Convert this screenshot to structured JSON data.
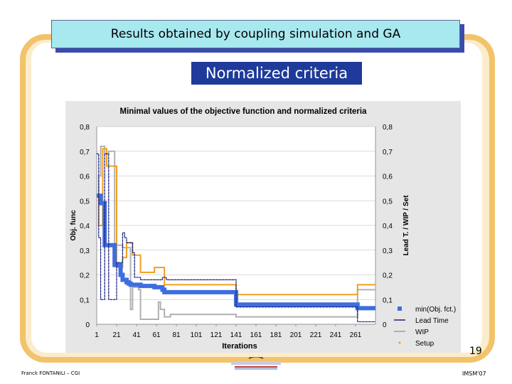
{
  "slide": {
    "title": "Results obtained by coupling simulation and GA",
    "subtitle": "Normalized criteria",
    "page_number": "19",
    "author": "Franck FONTANILI – CGI",
    "conference": "IMSM'07"
  },
  "colors": {
    "frame": "#f2c36b",
    "title_bg": "#a8e8ef",
    "subtitle_bg": "#1e3a9a",
    "obj_fct": "#3d6ee0",
    "lead_time": "#1a237e",
    "wip": "#b0b0b0",
    "setup": "#f0a020"
  },
  "chart_data": {
    "type": "line",
    "title": "Minimal values of the objective function and normalized criteria",
    "xlabel": "Iterations",
    "ylabel_left": "Obj. func",
    "ylabel_right": "Lead T. / WIP / Set",
    "xlim": [
      1,
      281
    ],
    "ylim": [
      0,
      0.8
    ],
    "x_ticks": [
      "1",
      "21",
      "41",
      "61",
      "81",
      "101",
      "121",
      "141",
      "161",
      "181",
      "201",
      "221",
      "241",
      "261"
    ],
    "y_ticks": [
      "0",
      "0,1",
      "0,2",
      "0,3",
      "0,4",
      "0,5",
      "0,6",
      "0,7",
      "0,8"
    ],
    "y_tick_values": [
      0,
      0.1,
      0.2,
      0.3,
      0.4,
      0.5,
      0.6,
      0.7,
      0.8
    ],
    "legend_position": "bottom-right",
    "series": [
      {
        "name": "min(Obj. fct.)",
        "style": "step",
        "x": [
          1,
          5,
          9,
          19,
          25,
          27,
          31,
          33,
          35,
          37,
          45,
          59,
          67,
          69,
          141,
          263,
          281
        ],
        "y": [
          0.52,
          0.49,
          0.32,
          0.24,
          0.2,
          0.18,
          0.17,
          0.165,
          0.16,
          0.16,
          0.155,
          0.15,
          0.14,
          0.13,
          0.08,
          0.065,
          0.065
        ]
      },
      {
        "name": "Lead Time",
        "style": "step",
        "x": [
          1,
          3,
          5,
          9,
          13,
          21,
          27,
          29,
          31,
          37,
          39,
          45,
          67,
          71,
          141,
          263,
          281
        ],
        "y": [
          0.69,
          0.35,
          0.1,
          0.69,
          0.1,
          0.25,
          0.37,
          0.35,
          0.33,
          0.29,
          0.19,
          0.18,
          0.19,
          0.18,
          0.07,
          0.01,
          0.01
        ]
      },
      {
        "name": "WIP",
        "style": "step",
        "x": [
          1,
          3,
          5,
          9,
          13,
          19,
          27,
          35,
          37,
          43,
          45,
          61,
          63,
          65,
          69,
          75,
          141,
          263,
          281
        ],
        "y": [
          0.52,
          0.6,
          0.72,
          0.69,
          0.7,
          0.32,
          0.31,
          0.06,
          0.15,
          0.14,
          0.02,
          0.02,
          0.09,
          0.06,
          0.03,
          0.04,
          0.03,
          0.14,
          0.14
        ]
      },
      {
        "name": "Setup",
        "style": "step",
        "x": [
          1,
          3,
          7,
          11,
          21,
          27,
          31,
          37,
          45,
          59,
          69,
          141,
          263,
          281
        ],
        "y": [
          0.52,
          0.4,
          0.71,
          0.64,
          0.23,
          0.27,
          0.33,
          0.28,
          0.21,
          0.23,
          0.16,
          0.12,
          0.16,
          0.16
        ]
      }
    ]
  }
}
